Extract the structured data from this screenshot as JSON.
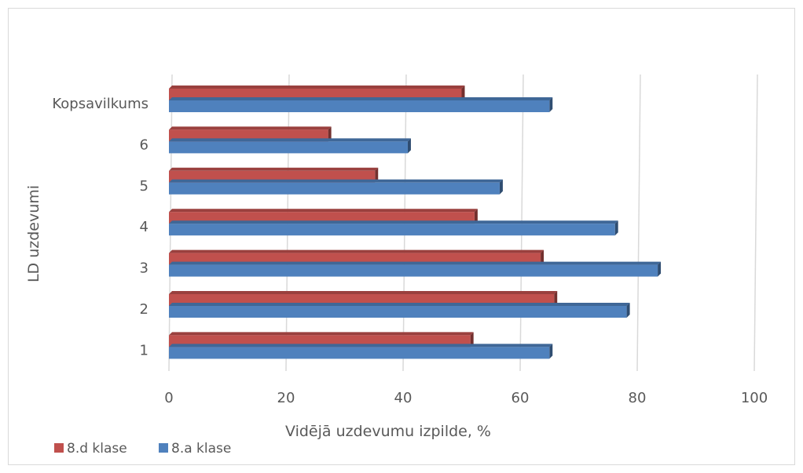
{
  "chart_data": {
    "type": "bar",
    "orientation": "horizontal",
    "style": "3d-clustered",
    "categories": [
      "1",
      "2",
      "3",
      "4",
      "5",
      "6",
      "Kopsavilkums"
    ],
    "series": [
      {
        "name": "8.d klase",
        "color": "#c0504d",
        "values": [
          51.5,
          65.8,
          63.5,
          52.2,
          35.2,
          27.2,
          50.0
        ]
      },
      {
        "name": "8.a klase",
        "color": "#4f81bd",
        "values": [
          65.0,
          78.2,
          83.5,
          76.2,
          56.5,
          40.8,
          65.0
        ]
      }
    ],
    "title": "",
    "xlabel": "Vidējā uzdevumu izpilde, %",
    "ylabel": "LD uzdevumi",
    "xlim": [
      0,
      100
    ],
    "xticks": [
      "0",
      "20",
      "40",
      "60",
      "80",
      "100"
    ],
    "grid": true,
    "legend_position": "bottom-left"
  }
}
